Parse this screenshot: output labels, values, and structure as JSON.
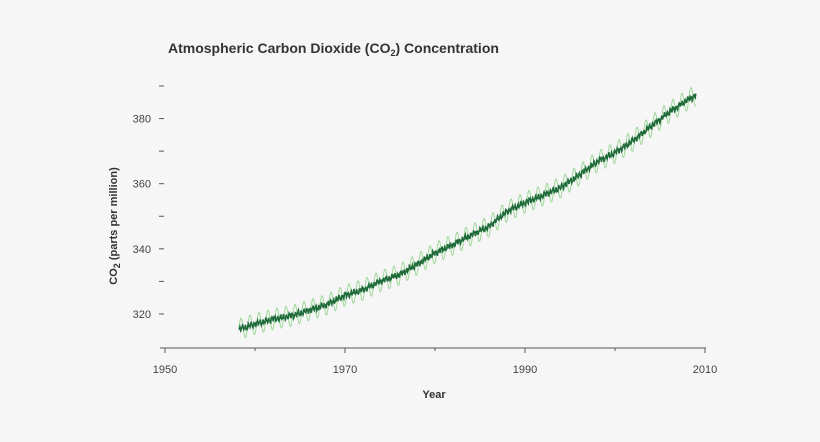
{
  "chart_data": {
    "type": "line",
    "title": {
      "prefix": "Atmospheric Carbon Dioxide (CO",
      "sub": "2",
      "suffix": ") Concentration"
    },
    "xlabel": "Year",
    "ylabel": {
      "prefix": "CO",
      "sub": "2",
      "suffix": " (parts per million)"
    },
    "xlim": [
      1950,
      2010
    ],
    "ylim": [
      310,
      390
    ],
    "x_major_ticks": [
      1950,
      1970,
      1990,
      2010
    ],
    "x_minor_ticks": [
      1960,
      1980,
      2000
    ],
    "y_major_ticks": [
      320,
      340,
      360,
      380
    ],
    "y_minor_ticks": [
      330,
      350,
      370,
      390
    ],
    "grid": false,
    "legend": "none",
    "series": [
      {
        "role": "monthly",
        "color": "#9fd89a",
        "seasonal_amplitude_ppm": 3.2,
        "x": [
          1958.2,
          1960,
          1962,
          1964,
          1966,
          1968,
          1970,
          1972,
          1974,
          1976,
          1978,
          1980,
          1982,
          1984,
          1986,
          1988,
          1990,
          1992,
          1994,
          1996,
          1998,
          2000,
          2002,
          2004,
          2006,
          2008,
          2009.0
        ],
        "y": [
          315.3,
          316.9,
          318.4,
          319.4,
          321.1,
          322.9,
          325.7,
          327.4,
          330.1,
          332.0,
          335.2,
          338.7,
          341.3,
          344.2,
          346.9,
          351.5,
          354.2,
          356.4,
          358.9,
          362.6,
          366.7,
          369.5,
          373.2,
          377.6,
          381.9,
          385.6,
          387.2
        ]
      },
      {
        "role": "trend",
        "color": "#1f6b3a",
        "x": [
          1958.2,
          1960,
          1962,
          1964,
          1966,
          1968,
          1970,
          1972,
          1974,
          1976,
          1978,
          1980,
          1982,
          1984,
          1986,
          1988,
          1990,
          1992,
          1994,
          1996,
          1998,
          2000,
          2002,
          2004,
          2006,
          2008,
          2009.0
        ],
        "y": [
          315.3,
          316.9,
          318.4,
          319.4,
          321.1,
          322.9,
          325.7,
          327.4,
          330.1,
          332.0,
          335.2,
          338.7,
          341.3,
          344.2,
          346.9,
          351.5,
          354.2,
          356.4,
          358.9,
          362.6,
          366.7,
          369.5,
          373.2,
          377.6,
          381.9,
          385.6,
          387.2
        ]
      }
    ]
  }
}
